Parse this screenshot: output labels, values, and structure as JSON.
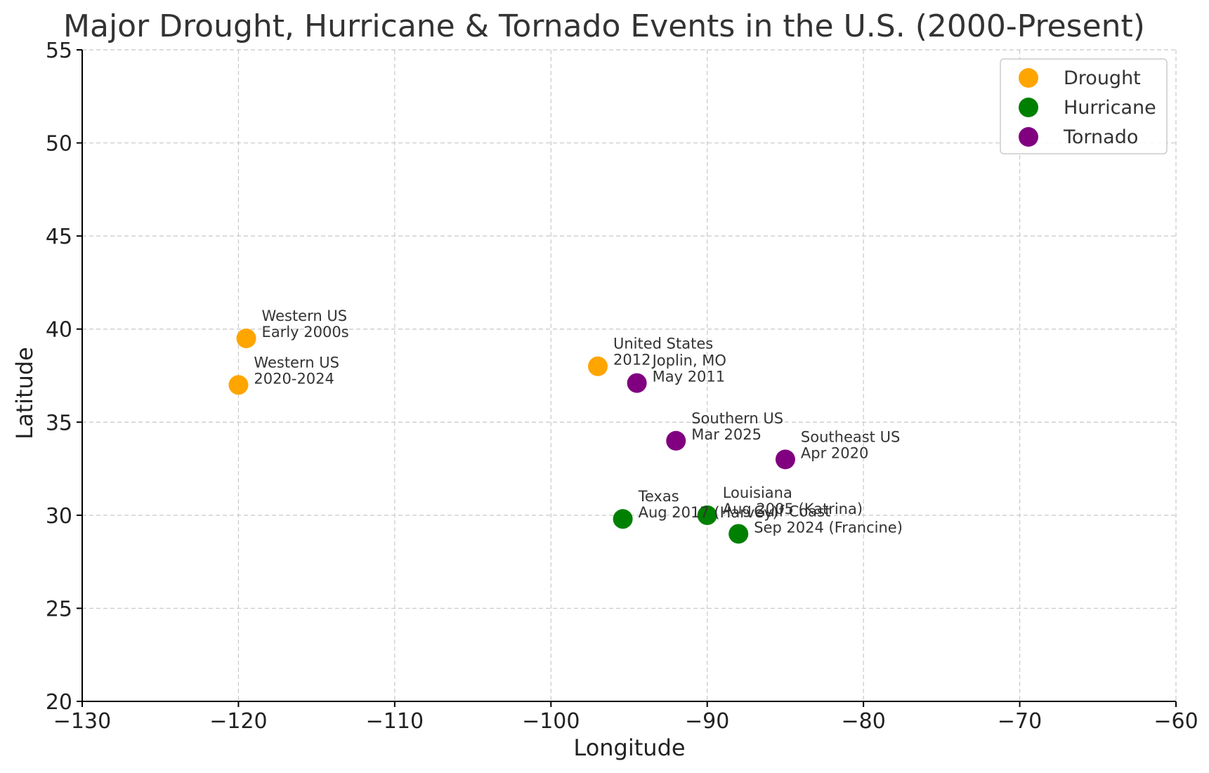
{
  "chart_data": {
    "type": "scatter",
    "title": "Major Drought, Hurricane & Tornado Events in the U.S. (2000-Present)",
    "xlabel": "Longitude",
    "ylabel": "Latitude",
    "xlim": [
      -130,
      -60
    ],
    "ylim": [
      20,
      55
    ],
    "xticks": [
      "−130",
      "−120",
      "−110",
      "−100",
      "−90",
      "−80",
      "−70",
      "−60"
    ],
    "yticks": [
      "20",
      "25",
      "30",
      "35",
      "40",
      "45",
      "50",
      "55"
    ],
    "grid": true,
    "legend_position": "top-right",
    "series": [
      {
        "name": "Drought",
        "color": "#FFA500",
        "points": [
          {
            "x": -119.5,
            "y": 39.5,
            "label": [
              "Western US",
              "Early 2000s"
            ]
          },
          {
            "x": -120.0,
            "y": 37.0,
            "label": [
              "Western US",
              "2020-2024"
            ]
          },
          {
            "x": -97.0,
            "y": 38.0,
            "label": [
              "United States",
              "2012"
            ]
          }
        ]
      },
      {
        "name": "Hurricane",
        "color": "#008000",
        "points": [
          {
            "x": -95.4,
            "y": 29.8,
            "label": [
              "Texas",
              "Aug 2017 (Harvey)"
            ]
          },
          {
            "x": -90.0,
            "y": 30.0,
            "label": [
              "Louisiana",
              "Aug 2005 (Katrina)"
            ]
          },
          {
            "x": -88.0,
            "y": 29.0,
            "label": [
              "Gulf Coast",
              "Sep 2024 (Francine)"
            ]
          }
        ]
      },
      {
        "name": "Tornado",
        "color": "#800080",
        "points": [
          {
            "x": -94.5,
            "y": 37.1,
            "label": [
              "Joplin, MO",
              "May 2011"
            ]
          },
          {
            "x": -92.0,
            "y": 34.0,
            "label": [
              "Southern US",
              "Mar 2025"
            ]
          },
          {
            "x": -85.0,
            "y": 33.0,
            "label": [
              "Southeast US",
              "Apr 2020"
            ]
          }
        ]
      }
    ]
  }
}
